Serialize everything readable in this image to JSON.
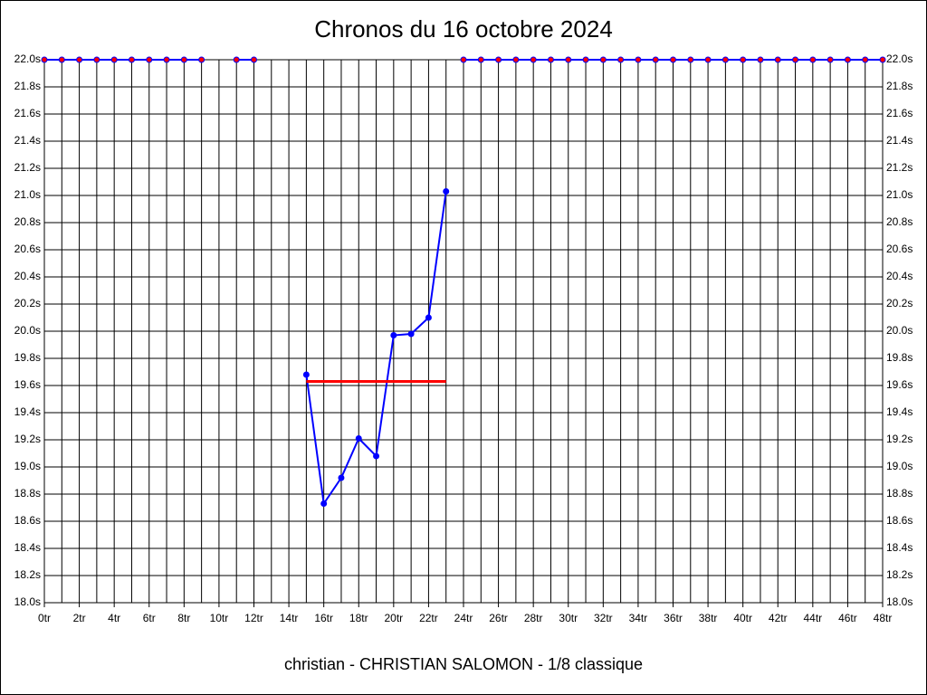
{
  "chart_data": {
    "type": "line",
    "title": "Chronos du 16 octobre 2024",
    "subtitle": "christian - CHRISTIAN SALOMON - 1/8 classique",
    "x": [
      0,
      1,
      2,
      3,
      4,
      5,
      6,
      7,
      8,
      9,
      10,
      11,
      12,
      13,
      14,
      15,
      16,
      17,
      18,
      19,
      20,
      21,
      22,
      23,
      24,
      25,
      26,
      27,
      28,
      29,
      30,
      31,
      32,
      33,
      34,
      35,
      36,
      37,
      38,
      39,
      40,
      41,
      42,
      43,
      44,
      45,
      46,
      47,
      48
    ],
    "xlim": [
      0,
      48
    ],
    "xticks": [
      {
        "value": 0,
        "label": "0tr"
      },
      {
        "value": 2,
        "label": "2tr"
      },
      {
        "value": 4,
        "label": "4tr"
      },
      {
        "value": 6,
        "label": "6tr"
      },
      {
        "value": 8,
        "label": "8tr"
      },
      {
        "value": 10,
        "label": "10tr"
      },
      {
        "value": 12,
        "label": "12tr"
      },
      {
        "value": 14,
        "label": "14tr"
      },
      {
        "value": 16,
        "label": "16tr"
      },
      {
        "value": 18,
        "label": "18tr"
      },
      {
        "value": 20,
        "label": "20tr"
      },
      {
        "value": 22,
        "label": "22tr"
      },
      {
        "value": 24,
        "label": "24tr"
      },
      {
        "value": 26,
        "label": "26tr"
      },
      {
        "value": 28,
        "label": "28tr"
      },
      {
        "value": 30,
        "label": "30tr"
      },
      {
        "value": 32,
        "label": "32tr"
      },
      {
        "value": 34,
        "label": "34tr"
      },
      {
        "value": 36,
        "label": "36tr"
      },
      {
        "value": 38,
        "label": "38tr"
      },
      {
        "value": 40,
        "label": "40tr"
      },
      {
        "value": 42,
        "label": "42tr"
      },
      {
        "value": 44,
        "label": "44tr"
      },
      {
        "value": 46,
        "label": "46tr"
      },
      {
        "value": 48,
        "label": "48tr"
      }
    ],
    "xminorticks": [
      1,
      3,
      5,
      7,
      9,
      11,
      13,
      15,
      17,
      19,
      21,
      23,
      25,
      27,
      29,
      31,
      33,
      35,
      37,
      39,
      41,
      43,
      45,
      47
    ],
    "ylim": [
      18.0,
      22.0
    ],
    "yticks": [
      {
        "value": 18.0,
        "label": "18.0s"
      },
      {
        "value": 18.2,
        "label": "18.2s"
      },
      {
        "value": 18.4,
        "label": "18.4s"
      },
      {
        "value": 18.6,
        "label": "18.6s"
      },
      {
        "value": 18.8,
        "label": "18.8s"
      },
      {
        "value": 19.0,
        "label": "19.0s"
      },
      {
        "value": 19.2,
        "label": "19.2s"
      },
      {
        "value": 19.4,
        "label": "19.4s"
      },
      {
        "value": 19.6,
        "label": "19.6s"
      },
      {
        "value": 19.8,
        "label": "19.8s"
      },
      {
        "value": 20.0,
        "label": "20.0s"
      },
      {
        "value": 20.2,
        "label": "20.2s"
      },
      {
        "value": 20.4,
        "label": "20.4s"
      },
      {
        "value": 20.6,
        "label": "20.6s"
      },
      {
        "value": 20.8,
        "label": "20.8s"
      },
      {
        "value": 21.0,
        "label": "21.0s"
      },
      {
        "value": 21.2,
        "label": "21.2s"
      },
      {
        "value": 21.4,
        "label": "21.4s"
      },
      {
        "value": 21.6,
        "label": "21.6s"
      },
      {
        "value": 21.8,
        "label": "21.8s"
      },
      {
        "value": 22.0,
        "label": "22.0s"
      }
    ],
    "grid": true,
    "series": [
      {
        "color": "#0000ff",
        "marker_color": "#ff0000",
        "markers": true,
        "values": [
          22.0,
          22.0,
          22.0,
          22.0,
          22.0,
          22.0,
          22.0,
          22.0,
          22.0,
          22.0,
          null,
          22.0,
          22.0,
          null,
          null,
          null,
          null,
          null,
          null,
          null,
          null,
          null,
          null,
          null,
          22.0,
          22.0,
          22.0,
          22.0,
          22.0,
          22.0,
          22.0,
          22.0,
          22.0,
          22.0,
          22.0,
          22.0,
          22.0,
          22.0,
          22.0,
          22.0,
          22.0,
          22.0,
          22.0,
          22.0,
          22.0,
          22.0,
          22.0,
          22.0,
          22.0
        ]
      },
      {
        "color": "#0000ff",
        "marker_color": "#0000ff",
        "markers": true,
        "values": [
          null,
          null,
          null,
          null,
          null,
          null,
          null,
          null,
          null,
          null,
          null,
          null,
          null,
          null,
          null,
          19.68,
          18.73,
          18.92,
          19.21,
          19.08,
          19.97,
          19.98,
          20.1,
          21.03,
          null,
          null,
          null,
          null,
          null,
          null,
          null,
          null,
          null,
          null,
          null,
          null,
          null,
          null,
          null,
          null,
          null,
          null,
          null,
          null,
          null,
          null,
          null,
          null,
          null
        ]
      },
      {
        "color": "#ff0000",
        "markers": false,
        "values": [
          null,
          null,
          null,
          null,
          null,
          null,
          null,
          null,
          null,
          null,
          null,
          null,
          null,
          null,
          null,
          19.63,
          19.63,
          19.63,
          19.63,
          19.63,
          19.63,
          19.63,
          19.63,
          19.63,
          null,
          null,
          null,
          null,
          null,
          null,
          null,
          null,
          null,
          null,
          null,
          null,
          null,
          null,
          null,
          null,
          null,
          null,
          null,
          null,
          null,
          null,
          null,
          null,
          null
        ]
      }
    ]
  }
}
